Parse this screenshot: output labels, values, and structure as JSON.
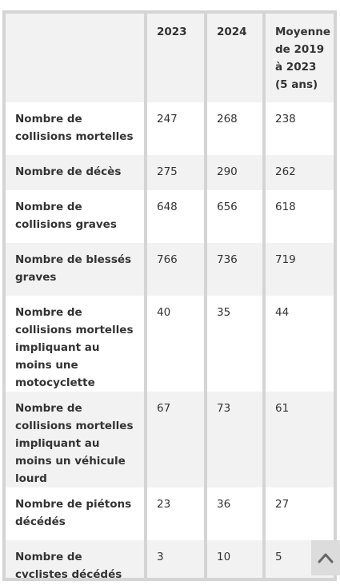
{
  "table": {
    "headers": [
      "",
      "2023",
      "2024",
      "Moyenne de 2019 à 2023 (5 ans)"
    ],
    "rows": [
      {
        "label": "Nombre de collisions mortelles",
        "y2023": "247",
        "y2024": "268",
        "avg": "238"
      },
      {
        "label": "Nombre de décès",
        "y2023": "275",
        "y2024": "290",
        "avg": "262"
      },
      {
        "label": "Nombre de collisions graves",
        "y2023": "648",
        "y2024": "656",
        "avg": "618"
      },
      {
        "label": "Nombre de blessés graves",
        "y2023": "766",
        "y2024": "736",
        "avg": "719"
      },
      {
        "label": "Nombre de collisions mortelles impliquant au moins une motocyclette",
        "y2023": "40",
        "y2024": "35",
        "avg": "44"
      },
      {
        "label": "Nombre de collisions mortelles impliquant au moins un véhicule lourd",
        "y2023": "67",
        "y2024": "73",
        "avg": "61"
      },
      {
        "label": "Nombre de piétons décédés",
        "y2023": "23",
        "y2024": "36",
        "avg": "27"
      },
      {
        "label": "Nombre de cyclistes décédés",
        "y2023": "3",
        "y2024": "10",
        "avg": "5"
      }
    ]
  },
  "scroll_top": {
    "icon": "chevron-up-icon",
    "color": "#666666",
    "background": "#dcdcdc"
  },
  "colors": {
    "border": "#d4d4d4",
    "stripe": "#f2f2f2",
    "text": "#333333"
  }
}
